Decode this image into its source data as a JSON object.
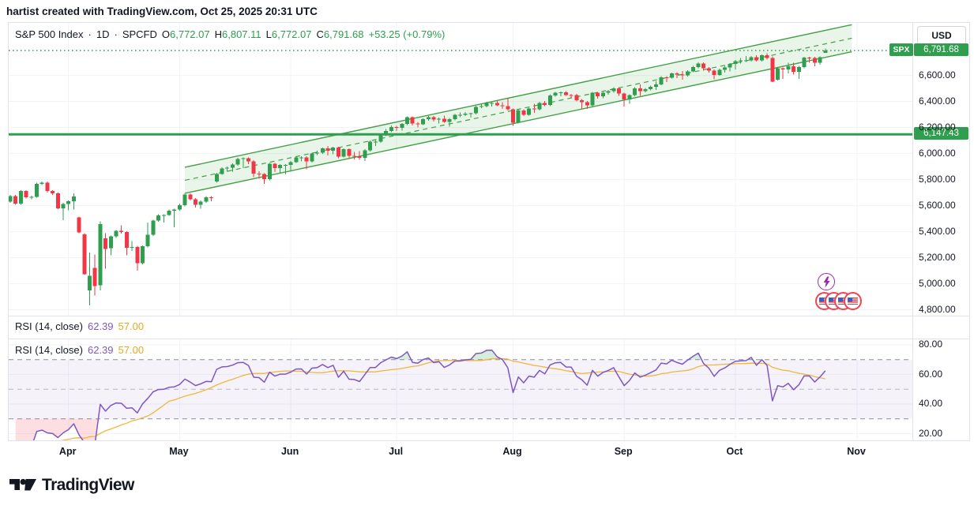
{
  "header": {
    "text": "hartist created with TradingView.com, Oct 25, 2025 20:31 UTC"
  },
  "legend": {
    "symbol": "S&P 500 Index",
    "separator": "·",
    "interval": "1D",
    "exchange": "SPCFD",
    "o_label": "O",
    "o_value": "6,772.07",
    "h_label": "H",
    "h_value": "6,807.11",
    "l_label": "L",
    "l_value": "6,772.07",
    "c_label": "C",
    "c_value": "6,791.68",
    "change": "+53.25 (+0.79%)"
  },
  "rsi_legend": {
    "title": "RSI (14, close)",
    "value": "62.39",
    "ma_value": "57.00"
  },
  "price_axis": {
    "currency_button": "USD",
    "ticks": [
      6600,
      6400,
      6200,
      6000,
      5800,
      5600,
      5400,
      5200,
      5000,
      4800
    ],
    "spx_badge": "SPX",
    "last_price_label": "6,791.68",
    "hline_label": "6,147.43"
  },
  "rsi_axis": {
    "ticks": [
      80,
      60,
      40,
      20
    ]
  },
  "time_axis": {
    "months": [
      {
        "label": "Apr",
        "index": 11
      },
      {
        "label": "May",
        "index": 32
      },
      {
        "label": "Jun",
        "index": 53
      },
      {
        "label": "Jul",
        "index": 73
      },
      {
        "label": "Aug",
        "index": 95
      },
      {
        "label": "Sep",
        "index": 116
      },
      {
        "label": "Oct",
        "index": 137
      },
      {
        "label": "Nov",
        "index": 160
      }
    ]
  },
  "footer": {
    "brand": "TradingView"
  },
  "colors": {
    "up": "#2f9e4f",
    "down": "#f23645",
    "channel": "#43a047",
    "channel_fill": "rgba(76,175,80,0.13)",
    "hline": "#2e9e4f",
    "rsi_line": "#7e57c2",
    "rsi_ma": "#f2b63c",
    "band_fill": "rgba(126,87,194,0.08)",
    "overbought_fill": "rgba(76,175,80,0.22)",
    "oversold_fill": "rgba(242,54,69,0.16)",
    "grid": "#f0f3fa",
    "dash_line": "#8b8fa0",
    "mid_dash_line": "#b5b8c1"
  },
  "chart_data": [
    {
      "type": "candlestick",
      "title": "S&P 500 Index · 1D · SPCFD",
      "ylim": [
        4750,
        7000
      ],
      "grid": true,
      "last_bar": {
        "open": 6772.07,
        "high": 6807.11,
        "low": 6772.07,
        "close": 6791.68,
        "change": 53.25,
        "change_pct": 0.79
      },
      "last_price": 6791.68,
      "horizontal_line_price": 6147.43,
      "channel": {
        "start_index": 33,
        "end_index": 159,
        "upper_start": 5895,
        "upper_end": 6990,
        "lower_start": 5695,
        "lower_end": 6782
      },
      "candles": [
        [
          5630,
          5683,
          5622,
          5675
        ],
        [
          5675,
          5683,
          5607,
          5615
        ],
        [
          5615,
          5720,
          5607,
          5712
        ],
        [
          5712,
          5720,
          5655,
          5663
        ],
        [
          5663,
          5676,
          5650,
          5668
        ],
        [
          5668,
          5776,
          5660,
          5768
        ],
        [
          5768,
          5786,
          5758,
          5777
        ],
        [
          5777,
          5785,
          5702,
          5712
        ],
        [
          5712,
          5720,
          5684,
          5694
        ],
        [
          5694,
          5702,
          5572,
          5581
        ],
        [
          5581,
          5622,
          5488,
          5612
        ],
        [
          5612,
          5641,
          5563,
          5633
        ],
        [
          5633,
          5695,
          5571,
          5671
        ],
        [
          5510,
          5516,
          5388,
          5396
        ],
        [
          5380,
          5390,
          5069,
          5074
        ],
        [
          4950,
          5240,
          4835,
          5062
        ],
        [
          5123,
          5225,
          4910,
          4983
        ],
        [
          4990,
          5481,
          4948,
          5457
        ],
        [
          5350,
          5388,
          5115,
          5268
        ],
        [
          5275,
          5371,
          5220,
          5363
        ],
        [
          5363,
          5414,
          5353,
          5406
        ],
        [
          5406,
          5450,
          5387,
          5397
        ],
        [
          5397,
          5405,
          5220,
          5276
        ],
        [
          5276,
          5328,
          5253,
          5283
        ],
        [
          5283,
          5291,
          5101,
          5158
        ],
        [
          5158,
          5296,
          5150,
          5288
        ],
        [
          5288,
          5470,
          5280,
          5376
        ],
        [
          5376,
          5493,
          5368,
          5485
        ],
        [
          5485,
          5533,
          5477,
          5525
        ],
        [
          5525,
          5533,
          5469,
          5529
        ],
        [
          5529,
          5569,
          5521,
          5561
        ],
        [
          5561,
          5577,
          5433,
          5569
        ],
        [
          5569,
          5617,
          5561,
          5604
        ],
        [
          5604,
          5695,
          5596,
          5687
        ],
        [
          5687,
          5695,
          5640,
          5650
        ],
        [
          5650,
          5658,
          5586,
          5607
        ],
        [
          5607,
          5639,
          5578,
          5631
        ],
        [
          5631,
          5672,
          5623,
          5664
        ],
        [
          5664,
          5672,
          5634,
          5660
        ],
        [
          5785,
          5852,
          5777,
          5844
        ],
        [
          5844,
          5895,
          5836,
          5887
        ],
        [
          5887,
          5901,
          5862,
          5893
        ],
        [
          5893,
          5924,
          5862,
          5916
        ],
        [
          5916,
          5966,
          5908,
          5958
        ],
        [
          5958,
          5971,
          5889,
          5963
        ],
        [
          5963,
          5971,
          5918,
          5940
        ],
        [
          5940,
          5948,
          5820,
          5845
        ],
        [
          5845,
          5863,
          5808,
          5842
        ],
        [
          5842,
          5850,
          5767,
          5803
        ],
        [
          5803,
          5929,
          5795,
          5921
        ],
        [
          5921,
          5929,
          5858,
          5888
        ],
        [
          5888,
          5920,
          5853,
          5912
        ],
        [
          5912,
          5920,
          5839,
          5912
        ],
        [
          5912,
          5943,
          5861,
          5935
        ],
        [
          5935,
          5978,
          5927,
          5970
        ],
        [
          5970,
          5980,
          5940,
          5971
        ],
        [
          5971,
          5980,
          5880,
          5939
        ],
        [
          5939,
          6008,
          5931,
          6000
        ],
        [
          6000,
          6021,
          5990,
          6006
        ],
        [
          6006,
          6047,
          5998,
          6039
        ],
        [
          6039,
          6059,
          5985,
          6022
        ],
        [
          6022,
          6053,
          5995,
          6045
        ],
        [
          6045,
          6053,
          5963,
          5977
        ],
        [
          5977,
          6041,
          5969,
          6033
        ],
        [
          6033,
          6041,
          5963,
          5983
        ],
        [
          5983,
          6012,
          5955,
          5981
        ],
        [
          5981,
          6018,
          5952,
          5968
        ],
        [
          5968,
          6033,
          5943,
          6025
        ],
        [
          6025,
          6100,
          6017,
          6092
        ],
        [
          6092,
          6100,
          6057,
          6092
        ],
        [
          6092,
          6149,
          6084,
          6141
        ],
        [
          6141,
          6188,
          6133,
          6173
        ],
        [
          6173,
          6215,
          6165,
          6205
        ],
        [
          6205,
          6213,
          6175,
          6198
        ],
        [
          6198,
          6235,
          6177,
          6227
        ],
        [
          6227,
          6287,
          6219,
          6279
        ],
        [
          6279,
          6287,
          6216,
          6230
        ],
        [
          6230,
          6242,
          6201,
          6226
        ],
        [
          6226,
          6271,
          6218,
          6263
        ],
        [
          6263,
          6290,
          6251,
          6280
        ],
        [
          6280,
          6288,
          6246,
          6260
        ],
        [
          6260,
          6277,
          6231,
          6268
        ],
        [
          6268,
          6292,
          6236,
          6244
        ],
        [
          6244,
          6272,
          6206,
          6264
        ],
        [
          6264,
          6305,
          6256,
          6297
        ],
        [
          6297,
          6315,
          6281,
          6297
        ],
        [
          6297,
          6318,
          6289,
          6306
        ],
        [
          6306,
          6314,
          6277,
          6310
        ],
        [
          6310,
          6367,
          6302,
          6359
        ],
        [
          6359,
          6381,
          6349,
          6363
        ],
        [
          6363,
          6397,
          6355,
          6389
        ],
        [
          6389,
          6401,
          6361,
          6390
        ],
        [
          6390,
          6409,
          6363,
          6371
        ],
        [
          6371,
          6396,
          6343,
          6363
        ],
        [
          6363,
          6427,
          6331,
          6339
        ],
        [
          6339,
          6347,
          6212,
          6238
        ],
        [
          6238,
          6338,
          6230,
          6330
        ],
        [
          6330,
          6340,
          6289,
          6299
        ],
        [
          6299,
          6353,
          6291,
          6345
        ],
        [
          6345,
          6382,
          6313,
          6340
        ],
        [
          6340,
          6397,
          6332,
          6389
        ],
        [
          6389,
          6405,
          6363,
          6373
        ],
        [
          6373,
          6454,
          6365,
          6446
        ],
        [
          6446,
          6474,
          6438,
          6466
        ],
        [
          6466,
          6477,
          6439,
          6469
        ],
        [
          6469,
          6481,
          6442,
          6450
        ],
        [
          6450,
          6458,
          6424,
          6449
        ],
        [
          6449,
          6457,
          6402,
          6411
        ],
        [
          6411,
          6419,
          6343,
          6395
        ],
        [
          6395,
          6403,
          6344,
          6370
        ],
        [
          6370,
          6475,
          6362,
          6467
        ],
        [
          6467,
          6475,
          6422,
          6439
        ],
        [
          6439,
          6474,
          6425,
          6466
        ],
        [
          6466,
          6489,
          6452,
          6481
        ],
        [
          6481,
          6510,
          6466,
          6502
        ],
        [
          6502,
          6510,
          6444,
          6460
        ],
        [
          6460,
          6468,
          6360,
          6415
        ],
        [
          6415,
          6456,
          6383,
          6448
        ],
        [
          6448,
          6510,
          6440,
          6502
        ],
        [
          6502,
          6532,
          6443,
          6481
        ],
        [
          6481,
          6503,
          6471,
          6495
        ],
        [
          6495,
          6521,
          6487,
          6513
        ],
        [
          6513,
          6555,
          6489,
          6532
        ],
        [
          6532,
          6595,
          6524,
          6587
        ],
        [
          6587,
          6595,
          6548,
          6584
        ],
        [
          6584,
          6623,
          6576,
          6615
        ],
        [
          6615,
          6626,
          6581,
          6606
        ],
        [
          6606,
          6633,
          6568,
          6600
        ],
        [
          6600,
          6640,
          6592,
          6632
        ],
        [
          6632,
          6672,
          6624,
          6664
        ],
        [
          6664,
          6701,
          6656,
          6693
        ],
        [
          6693,
          6701,
          6637,
          6656
        ],
        [
          6656,
          6664,
          6621,
          6638
        ],
        [
          6638,
          6646,
          6570,
          6605
        ],
        [
          6605,
          6652,
          6597,
          6644
        ],
        [
          6644,
          6674,
          6622,
          6661
        ],
        [
          6661,
          6696,
          6630,
          6688
        ],
        [
          6688,
          6719,
          6647,
          6711
        ],
        [
          6711,
          6733,
          6692,
          6715
        ],
        [
          6715,
          6750,
          6705,
          6716
        ],
        [
          6716,
          6748,
          6708,
          6740
        ],
        [
          6740,
          6756,
          6707,
          6715
        ],
        [
          6715,
          6762,
          6707,
          6754
        ],
        [
          6754,
          6770,
          6721,
          6735
        ],
        [
          6735,
          6745,
          6550,
          6553
        ],
        [
          6568,
          6663,
          6560,
          6654
        ],
        [
          6654,
          6662,
          6575,
          6645
        ],
        [
          6645,
          6697,
          6617,
          6671
        ],
        [
          6671,
          6699,
          6608,
          6629
        ],
        [
          6629,
          6675,
          6572,
          6664
        ],
        [
          6664,
          6744,
          6656,
          6736
        ],
        [
          6736,
          6744,
          6698,
          6735
        ],
        [
          6735,
          6743,
          6671,
          6699
        ],
        [
          6699,
          6747,
          6683,
          6739
        ],
        [
          6772,
          6807,
          6772,
          6792
        ]
      ]
    },
    {
      "type": "line",
      "title": "RSI (14, close)",
      "params": {
        "length": 14,
        "source": "close"
      },
      "last_value": 62.39,
      "ma_last_value": 57.0,
      "levels": {
        "overbought": 70,
        "middle": 50,
        "oversold": 30
      },
      "band": [
        30,
        70
      ],
      "ylim": [
        15,
        84
      ],
      "series_note": "RSI(14) of candle closes with SMA(14) smoothing line, values as displayed in legend"
    }
  ]
}
